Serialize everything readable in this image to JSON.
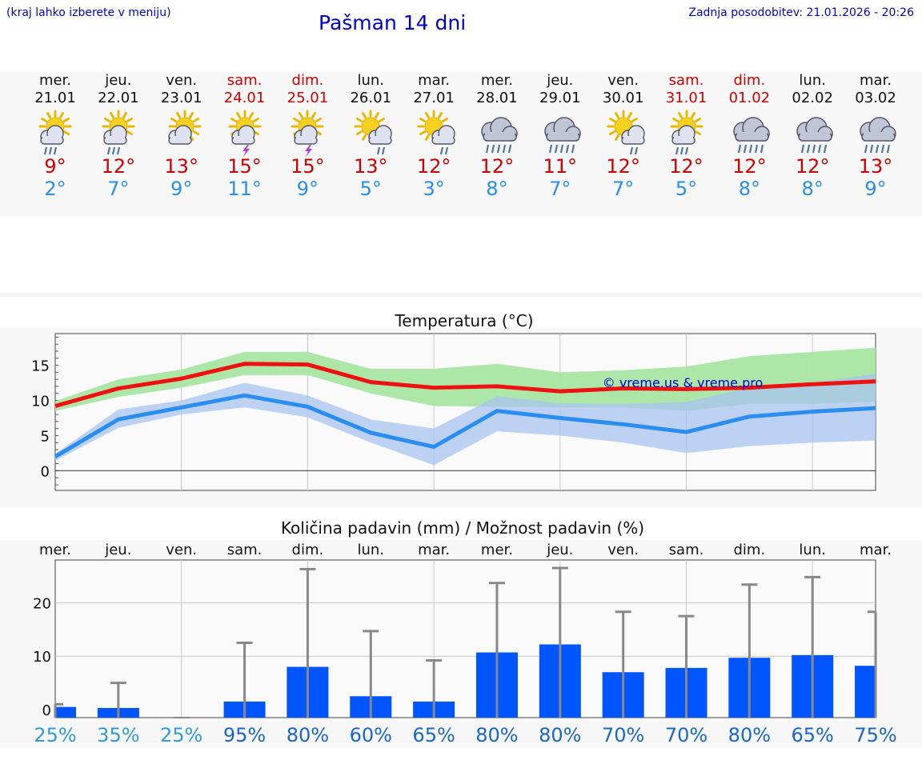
{
  "header": {
    "hint": "(kraj lahko izberete v meniju)",
    "title": "Pašman 14 dni",
    "updated": "Zadnja posodobitev: 21.01.2026 - 20:26"
  },
  "days": [
    {
      "name": "mer.",
      "date": "21.01",
      "weekend": false,
      "icon": "sun-cloud-rain-icon",
      "tmax": "9°",
      "tmin": "2°"
    },
    {
      "name": "jeu.",
      "date": "22.01",
      "weekend": false,
      "icon": "sun-cloud-rain-icon",
      "tmax": "12°",
      "tmin": "7°"
    },
    {
      "name": "ven.",
      "date": "23.01",
      "weekend": false,
      "icon": "sun-cloud-icon",
      "tmax": "13°",
      "tmin": "9°"
    },
    {
      "name": "sam.",
      "date": "24.01",
      "weekend": true,
      "icon": "sun-cloud-storm-icon",
      "tmax": "15°",
      "tmin": "11°"
    },
    {
      "name": "dim.",
      "date": "25.01",
      "weekend": true,
      "icon": "sun-cloud-storm-icon",
      "tmax": "15°",
      "tmin": "9°"
    },
    {
      "name": "lun.",
      "date": "26.01",
      "weekend": false,
      "icon": "sun-cloud-light-rain-icon",
      "tmax": "13°",
      "tmin": "5°"
    },
    {
      "name": "mar.",
      "date": "27.01",
      "weekend": false,
      "icon": "sun-cloud-light-rain-icon",
      "tmax": "12°",
      "tmin": "3°"
    },
    {
      "name": "mer.",
      "date": "28.01",
      "weekend": false,
      "icon": "cloud-heavy-rain-icon",
      "tmax": "12°",
      "tmin": "8°"
    },
    {
      "name": "jeu.",
      "date": "29.01",
      "weekend": false,
      "icon": "cloud-heavy-rain-icon",
      "tmax": "11°",
      "tmin": "7°"
    },
    {
      "name": "ven.",
      "date": "30.01",
      "weekend": false,
      "icon": "sun-cloud-light-rain-icon",
      "tmax": "12°",
      "tmin": "7°"
    },
    {
      "name": "sam.",
      "date": "31.01",
      "weekend": true,
      "icon": "sun-cloud-rain-icon",
      "tmax": "12°",
      "tmin": "5°"
    },
    {
      "name": "dim.",
      "date": "01.02",
      "weekend": true,
      "icon": "cloud-heavy-rain-icon",
      "tmax": "12°",
      "tmin": "8°"
    },
    {
      "name": "lun.",
      "date": "02.02",
      "weekend": false,
      "icon": "cloud-heavy-rain-icon",
      "tmax": "12°",
      "tmin": "8°"
    },
    {
      "name": "mar.",
      "date": "03.02",
      "weekend": false,
      "icon": "cloud-heavy-rain-icon",
      "tmax": "13°",
      "tmin": "9°"
    }
  ],
  "colors": {
    "tmax_line": "#ee1111",
    "tmax_band": "#a9e6a3",
    "tmin_line": "#2a8ef0",
    "tmin_band": "#a8c4f0",
    "bar": "#0055ff",
    "whisker": "#888888",
    "pct_low": "#3399dd",
    "pct_high": "#1a66cc",
    "sun": "#f5d020",
    "cloud": "#c0c6d6",
    "rain": "#557799",
    "bolt": "#aa44cc"
  },
  "chart_data": [
    {
      "type": "line",
      "title": "Temperatura (°C)",
      "watermark": "© vreme.us & vreme.pro",
      "ylim": [
        -2.8,
        19.5
      ],
      "yticks": [
        0,
        5,
        10,
        15
      ],
      "x": [
        0,
        1,
        2,
        3,
        4,
        5,
        6,
        7,
        8,
        9,
        10,
        11,
        12,
        13
      ],
      "series": [
        {
          "name": "max",
          "values": [
            9.2,
            11.7,
            13.1,
            15.2,
            15.1,
            12.6,
            11.8,
            12.0,
            11.3,
            11.7,
            11.6,
            11.8,
            12.3,
            12.7
          ]
        },
        {
          "name": "min",
          "values": [
            2.0,
            7.3,
            9.0,
            10.7,
            9.1,
            5.4,
            3.4,
            8.5,
            7.5,
            6.6,
            5.5,
            7.7,
            8.4,
            8.9
          ]
        }
      ],
      "bands": [
        {
          "name": "max-range",
          "upper": [
            9.9,
            13.0,
            14.4,
            16.9,
            16.9,
            14.5,
            14.5,
            15.2,
            14.0,
            14.3,
            14.8,
            16.3,
            16.9,
            17.5
          ],
          "lower": [
            8.5,
            10.5,
            11.8,
            13.6,
            13.6,
            11.0,
            9.2,
            9.1,
            9.0,
            9.0,
            8.5,
            9.5,
            9.5,
            9.8
          ]
        },
        {
          "name": "min-range",
          "upper": [
            2.4,
            8.7,
            10.0,
            12.5,
            10.7,
            7.3,
            6.0,
            10.6,
            9.6,
            9.5,
            9.8,
            11.8,
            12.5,
            13.8
          ]
        },
        {
          "name": "min-range-lower",
          "values": [
            1.4,
            6.1,
            8.0,
            9.0,
            7.6,
            4.0,
            0.8,
            5.6,
            5.0,
            4.0,
            2.5,
            3.5,
            4.0,
            4.3
          ]
        }
      ]
    },
    {
      "type": "bar",
      "title": "Količina padavin (mm) / Možnost padavin (%)",
      "categories": [
        "mer.",
        "jeu.",
        "ven.",
        "sam.",
        "dim.",
        "lun.",
        "mar.",
        "mer.",
        "jeu.",
        "ven.",
        "sam.",
        "dim.",
        "lun.",
        "mar."
      ],
      "ylim": [
        -1.5,
        28
      ],
      "yticks": [
        0,
        10,
        20
      ],
      "values": [
        0.5,
        0.3,
        0.0,
        1.5,
        8.0,
        2.5,
        1.5,
        10.7,
        12.2,
        7.0,
        7.8,
        9.7,
        10.2,
        8.2
      ],
      "max_values": [
        1.0,
        5.0,
        0.0,
        12.5,
        26.3,
        14.7,
        9.2,
        23.7,
        26.5,
        18.3,
        17.5,
        23.4,
        24.8,
        18.3
      ],
      "probabilities": [
        "25%",
        "35%",
        "25%",
        "95%",
        "80%",
        "60%",
        "65%",
        "80%",
        "80%",
        "70%",
        "70%",
        "80%",
        "65%",
        "75%"
      ]
    }
  ]
}
